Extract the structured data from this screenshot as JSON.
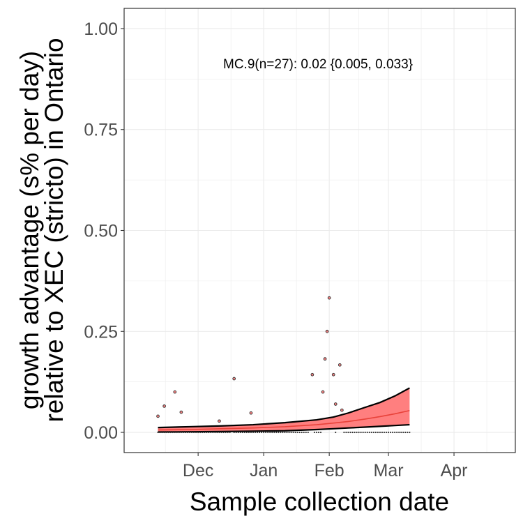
{
  "chart_data": {
    "type": "scatter",
    "title": "",
    "xlabel": "Sample collection date",
    "ylabel_line1": "growth advantage (s% per day)",
    "ylabel_line2": "relative to XEC (stricto) in Ontario",
    "annotation": "MC.9(n=27): 0.02 {0.005, 0.033}",
    "x_axis": {
      "type": "date",
      "range": [
        "2024-10-27",
        "2025-04-30"
      ],
      "ticks": [
        {
          "date": "2024-12-01",
          "label": "Dec"
        },
        {
          "date": "2025-01-01",
          "label": "Jan"
        },
        {
          "date": "2025-02-01",
          "label": "Feb"
        },
        {
          "date": "2025-03-01",
          "label": "Mar"
        },
        {
          "date": "2025-04-01",
          "label": "Apr"
        }
      ]
    },
    "y_axis": {
      "range": [
        -0.05,
        1.05
      ],
      "ticks": [
        {
          "value": 0.0,
          "label": "0.00"
        },
        {
          "value": 0.25,
          "label": "0.25"
        },
        {
          "value": 0.5,
          "label": "0.50"
        },
        {
          "value": 0.75,
          "label": "0.75"
        },
        {
          "value": 1.0,
          "label": "1.00"
        }
      ]
    },
    "grid": true,
    "colors": {
      "ribbon_fill": "#ff7f7f",
      "fit_line": "#e8423a",
      "bounds": "#000000",
      "point_fill": "#f08080",
      "point_stroke": "#333333",
      "grid_major": "#ebebeb",
      "panel_border": "#333333"
    },
    "fit": {
      "dates": [
        "2024-11-12",
        "2024-11-27",
        "2024-12-12",
        "2024-12-27",
        "2025-01-11",
        "2025-01-26",
        "2025-02-03",
        "2025-02-10",
        "2025-02-18",
        "2025-02-25",
        "2025-03-04",
        "2025-03-11"
      ],
      "mid": [
        0.006,
        0.007,
        0.009,
        0.011,
        0.014,
        0.019,
        0.023,
        0.027,
        0.033,
        0.039,
        0.046,
        0.054
      ],
      "upper": [
        0.012,
        0.014,
        0.016,
        0.019,
        0.024,
        0.031,
        0.038,
        0.048,
        0.062,
        0.074,
        0.09,
        0.11
      ],
      "lower": [
        0.001,
        0.0015,
        0.002,
        0.003,
        0.004,
        0.007,
        0.009,
        0.011,
        0.013,
        0.015,
        0.017,
        0.019
      ]
    },
    "points": [
      {
        "date": "2024-11-12",
        "value": 0.04
      },
      {
        "date": "2024-11-15",
        "value": 0.065
      },
      {
        "date": "2024-11-20",
        "value": 0.1
      },
      {
        "date": "2024-11-23",
        "value": 0.05
      },
      {
        "date": "2024-12-11",
        "value": 0.028
      },
      {
        "date": "2024-12-18",
        "value": 0.133
      },
      {
        "date": "2024-12-26",
        "value": 0.048
      },
      {
        "date": "2025-01-24",
        "value": 0.143
      },
      {
        "date": "2025-01-29",
        "value": 0.1
      },
      {
        "date": "2025-01-30",
        "value": 0.182
      },
      {
        "date": "2025-01-31",
        "value": 0.25
      },
      {
        "date": "2025-02-01",
        "value": 0.333
      },
      {
        "date": "2025-02-03",
        "value": 0.143
      },
      {
        "date": "2025-02-04",
        "value": 0.07
      },
      {
        "date": "2025-02-06",
        "value": 0.167
      },
      {
        "date": "2025-02-07",
        "value": 0.055
      }
    ],
    "zero_points": {
      "dates": [
        "2024-11-12",
        "2024-11-13",
        "2024-11-14",
        "2024-11-15",
        "2024-11-16",
        "2024-11-17",
        "2024-11-18",
        "2024-11-19",
        "2024-11-20",
        "2024-11-21",
        "2024-11-22",
        "2024-11-23",
        "2024-11-24",
        "2024-11-25",
        "2024-11-26",
        "2024-11-27",
        "2024-11-28",
        "2024-11-29",
        "2024-11-30",
        "2024-12-01",
        "2024-12-02",
        "2024-12-03",
        "2024-12-04",
        "2024-12-05",
        "2024-12-06",
        "2024-12-07",
        "2024-12-08",
        "2024-12-09",
        "2024-12-10",
        "2024-12-11",
        "2024-12-12",
        "2024-12-13",
        "2024-12-14",
        "2024-12-15",
        "2024-12-16",
        "2024-12-18",
        "2024-12-19",
        "2024-12-20",
        "2024-12-21",
        "2024-12-22",
        "2024-12-23",
        "2024-12-24",
        "2024-12-25",
        "2024-12-26",
        "2024-12-27",
        "2024-12-28",
        "2024-12-29",
        "2024-12-30",
        "2024-12-31",
        "2025-01-01",
        "2025-01-02",
        "2025-01-03",
        "2025-01-04",
        "2025-01-05",
        "2025-01-06",
        "2025-01-07",
        "2025-01-08",
        "2025-01-09",
        "2025-01-10",
        "2025-01-11",
        "2025-01-12",
        "2025-01-13",
        "2025-01-14",
        "2025-01-15",
        "2025-01-16",
        "2025-01-17",
        "2025-01-18",
        "2025-01-19",
        "2025-01-20",
        "2025-01-21",
        "2025-01-22",
        "2025-01-25",
        "2025-01-26",
        "2025-01-27",
        "2025-01-28",
        "2025-02-04",
        "2025-02-08",
        "2025-02-09",
        "2025-02-10",
        "2025-02-11",
        "2025-02-12",
        "2025-02-13",
        "2025-02-14",
        "2025-02-15",
        "2025-02-16",
        "2025-02-17",
        "2025-02-18",
        "2025-02-19",
        "2025-02-20",
        "2025-02-21",
        "2025-02-22",
        "2025-02-23",
        "2025-02-24",
        "2025-02-25",
        "2025-02-26",
        "2025-02-27",
        "2025-02-28",
        "2025-03-01",
        "2025-03-02",
        "2025-03-03",
        "2025-03-04",
        "2025-03-05",
        "2025-03-06",
        "2025-03-07",
        "2025-03-08",
        "2025-03-09",
        "2025-03-10",
        "2025-03-11"
      ],
      "value": 0
    }
  }
}
